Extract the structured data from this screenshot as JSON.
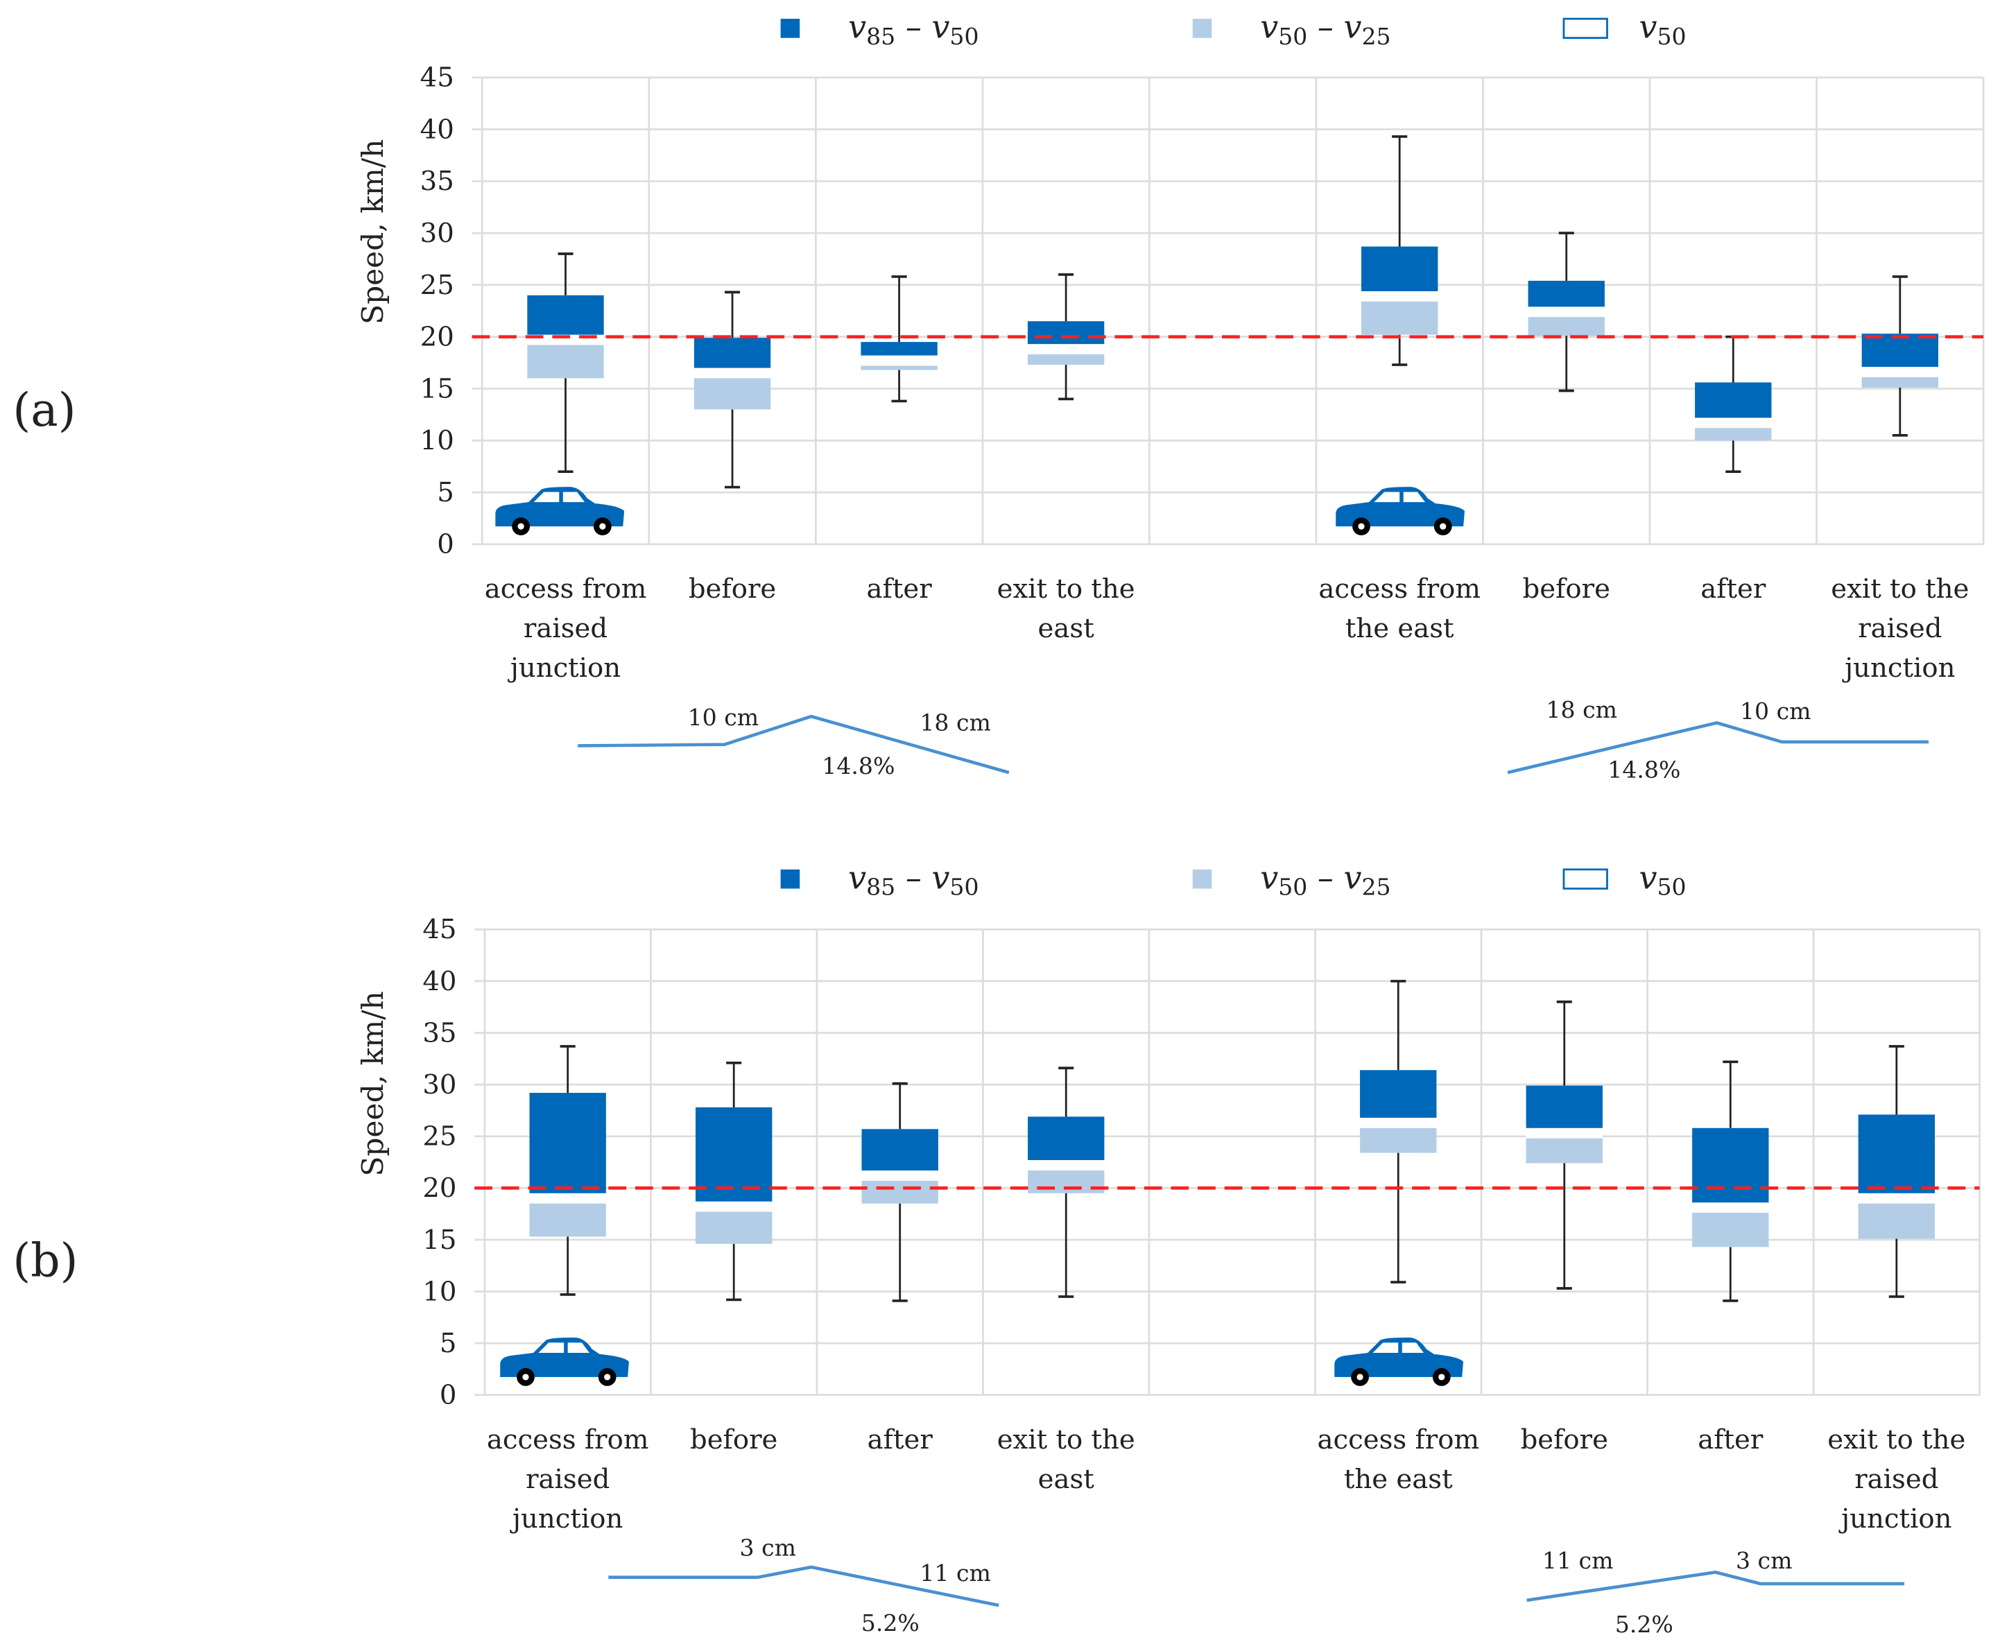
{
  "colors": {
    "dark": "#0068B8",
    "light": "#B3CDE6",
    "ref": "#FF2020",
    "ramp": "#4A90D0",
    "grid": "#DDDDDD"
  },
  "chart_data": [
    {
      "type": "box",
      "panel_label": "(a)",
      "ylabel": "Speed, km/h",
      "ylim": [
        0,
        45
      ],
      "yticks": [
        0,
        5,
        10,
        15,
        20,
        25,
        30,
        35,
        40,
        45
      ],
      "reference_line": 20,
      "grid": true,
      "legend_position": "top",
      "legend": [
        {
          "key": "v85-v50",
          "main": "v",
          "s1": "85",
          "mid": " – v",
          "s2": "50"
        },
        {
          "key": "v50-v25",
          "main": "v",
          "s1": "50",
          "mid": " – v",
          "s2": "25"
        },
        {
          "key": "v50",
          "main": "v",
          "s1": "50",
          "mid": "",
          "s2": ""
        }
      ],
      "categories": [
        [
          "access from",
          "raised",
          "junction"
        ],
        [
          "before"
        ],
        [
          "after"
        ],
        [
          "exit to the",
          "east"
        ],
        [],
        [
          "access from",
          "the east"
        ],
        [
          "before"
        ],
        [
          "after"
        ],
        [
          "exit to the",
          "raised",
          "junction"
        ]
      ],
      "series": [
        {
          "min": 7,
          "v25": 16,
          "v50": 19.7,
          "v85": 24,
          "max": 28
        },
        {
          "min": 5.5,
          "v25": 13,
          "v50": 16.5,
          "v85": 19.9,
          "max": 24.3
        },
        {
          "min": 13.8,
          "v25": 16.8,
          "v50": 17.7,
          "v85": 19.5,
          "max": 25.8
        },
        {
          "min": 14,
          "v25": 17.3,
          "v50": 18.8,
          "v85": 21.5,
          "max": 26
        },
        null,
        {
          "min": 17.3,
          "v25": 20.2,
          "v50": 23.9,
          "v85": 28.7,
          "max": 39.3
        },
        {
          "min": 14.8,
          "v25": 20.1,
          "v50": 22.4,
          "v85": 25.4,
          "max": 30
        },
        {
          "min": 7,
          "v25": 10,
          "v50": 11.7,
          "v85": 15.6,
          "max": 20
        },
        {
          "min": 10.5,
          "v25": 15.1,
          "v50": 16.6,
          "v85": 20.3,
          "max": 25.8
        }
      ],
      "cars": [
        0,
        5
      ],
      "ramps": [
        {
          "labels": [
            "10 cm",
            "18 cm",
            "14.8%"
          ]
        },
        {
          "labels": [
            "18 cm",
            "10 cm",
            "14.8%"
          ]
        }
      ]
    },
    {
      "type": "box",
      "panel_label": "(b)",
      "ylabel": "Speed, km/h",
      "ylim": [
        0,
        45
      ],
      "yticks": [
        0,
        5,
        10,
        15,
        20,
        25,
        30,
        35,
        40,
        45
      ],
      "reference_line": 20,
      "grid": true,
      "legend_position": "top",
      "legend": [
        {
          "key": "v85-v50",
          "main": "v",
          "s1": "85",
          "mid": " – v",
          "s2": "50"
        },
        {
          "key": "v50-v25",
          "main": "v",
          "s1": "50",
          "mid": " – v",
          "s2": "25"
        },
        {
          "key": "v50",
          "main": "v",
          "s1": "50",
          "mid": "",
          "s2": ""
        }
      ],
      "categories": [
        [
          "access from",
          "raised",
          "junction"
        ],
        [
          "before"
        ],
        [
          "after"
        ],
        [
          "exit to the",
          "east"
        ],
        [],
        [
          "access from",
          "the east"
        ],
        [
          "before"
        ],
        [
          "after"
        ],
        [
          "exit to the",
          "raised",
          "junction"
        ]
      ],
      "series": [
        {
          "min": 9.7,
          "v25": 15.3,
          "v50": 19,
          "v85": 29.2,
          "max": 33.7
        },
        {
          "min": 9.2,
          "v25": 14.6,
          "v50": 18.2,
          "v85": 27.8,
          "max": 32.1
        },
        {
          "min": 9.1,
          "v25": 18.5,
          "v50": 21.2,
          "v85": 25.7,
          "max": 30.1
        },
        {
          "min": 9.5,
          "v25": 19.5,
          "v50": 22.2,
          "v85": 26.9,
          "max": 31.6
        },
        null,
        {
          "min": 10.9,
          "v25": 23.4,
          "v50": 26.3,
          "v85": 31.4,
          "max": 40
        },
        {
          "min": 10.3,
          "v25": 22.4,
          "v50": 25.3,
          "v85": 29.9,
          "max": 38
        },
        {
          "min": 9.1,
          "v25": 14.3,
          "v50": 18.1,
          "v85": 25.8,
          "max": 32.2
        },
        {
          "min": 9.5,
          "v25": 15.1,
          "v50": 19,
          "v85": 27.1,
          "max": 33.7
        }
      ],
      "cars": [
        0,
        5
      ],
      "ramps": [
        {
          "labels": [
            "3 cm",
            "11 cm",
            "5.2%"
          ]
        },
        {
          "labels": [
            "11 cm",
            "3 cm",
            "5.2%"
          ]
        }
      ]
    }
  ]
}
